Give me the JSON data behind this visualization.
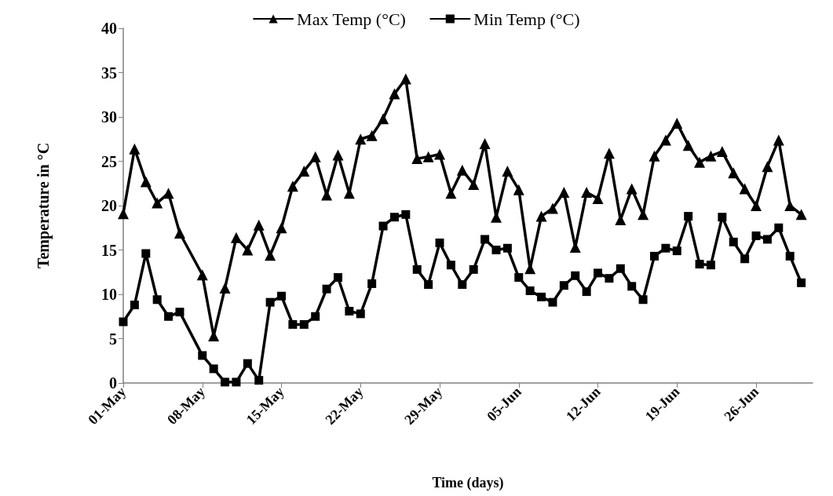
{
  "chart_data": {
    "type": "line",
    "xlabel": "Time (days)",
    "ylabel": "Temperature in °C",
    "ylim": [
      0,
      40
    ],
    "yticks": [
      0,
      5,
      10,
      15,
      20,
      25,
      30,
      35,
      40
    ],
    "xlim": [
      "--05-01",
      "--07-01"
    ],
    "xticks": [
      {
        "value": "--05-01",
        "label": "01-May"
      },
      {
        "value": "--05-08",
        "label": "08-May"
      },
      {
        "value": "--05-15",
        "label": "15-May"
      },
      {
        "value": "--05-22",
        "label": "22-May"
      },
      {
        "value": "--05-29",
        "label": "29-May"
      },
      {
        "value": "--06-05",
        "label": "05-Jun"
      },
      {
        "value": "--06-12",
        "label": "12-Jun"
      },
      {
        "value": "--06-19",
        "label": "19-Jun"
      },
      {
        "value": "--06-26",
        "label": "26-Jun"
      }
    ],
    "x": [
      "--05-01",
      "--05-02",
      "--05-03",
      "--05-04",
      "--05-05",
      "--05-06",
      "--05-08",
      "--05-09",
      "--05-10",
      "--05-11",
      "--05-12",
      "--05-13",
      "--05-14",
      "--05-15",
      "--05-16",
      "--05-17",
      "--05-18",
      "--05-19",
      "--05-20",
      "--05-21",
      "--05-22",
      "--05-23",
      "--05-24",
      "--05-25",
      "--05-26",
      "--05-27",
      "--05-28",
      "--05-29",
      "--05-30",
      "--05-31",
      "--06-01",
      "--06-02",
      "--06-03",
      "--06-04",
      "--06-05",
      "--06-06",
      "--06-07",
      "--06-08",
      "--06-09",
      "--06-10",
      "--06-11",
      "--06-12",
      "--06-13",
      "--06-14",
      "--06-15",
      "--06-16",
      "--06-17",
      "--06-18",
      "--06-19",
      "--06-20",
      "--06-21",
      "--06-22",
      "--06-23",
      "--06-24",
      "--06-25",
      "--06-26",
      "--06-27",
      "--06-28",
      "--06-29",
      "--06-30"
    ],
    "series": [
      {
        "name": "Max Temp (°C)",
        "color": "#000000",
        "marker": "triangle",
        "values": [
          19.1,
          26.4,
          22.7,
          20.3,
          21.4,
          16.9,
          12.2,
          5.3,
          10.7,
          16.4,
          15.0,
          17.8,
          14.4,
          17.5,
          22.2,
          23.9,
          25.5,
          21.2,
          25.7,
          21.4,
          27.5,
          27.9,
          29.8,
          32.6,
          34.3,
          25.3,
          25.5,
          25.8,
          21.4,
          24.0,
          22.4,
          27.0,
          18.7,
          23.9,
          21.8,
          12.9,
          18.8,
          19.7,
          21.5,
          15.3,
          21.5,
          20.8,
          25.9,
          18.4,
          21.9,
          19.0,
          25.6,
          27.4,
          29.3,
          26.8,
          24.9,
          25.6,
          26.1,
          23.7,
          21.9,
          20.0,
          24.4,
          27.4,
          20.0,
          19.0
        ]
      },
      {
        "name": "Min Temp (°C)",
        "color": "#000000",
        "marker": "square",
        "values": [
          6.9,
          8.8,
          14.6,
          9.4,
          7.5,
          8.0,
          3.1,
          1.6,
          0.1,
          0.1,
          2.2,
          0.3,
          9.1,
          9.8,
          6.6,
          6.6,
          7.5,
          10.6,
          11.9,
          8.1,
          7.8,
          11.2,
          17.7,
          18.7,
          19.0,
          12.8,
          11.1,
          15.8,
          13.3,
          11.1,
          12.8,
          16.2,
          15.0,
          15.2,
          11.9,
          10.4,
          9.7,
          9.1,
          11.0,
          12.1,
          10.3,
          12.4,
          11.8,
          12.9,
          10.9,
          9.4,
          14.3,
          15.2,
          14.9,
          18.8,
          13.4,
          13.3,
          18.7,
          15.9,
          14.0,
          16.6,
          16.2,
          17.5,
          14.3,
          11.3
        ]
      }
    ],
    "legend": "top",
    "grid": false,
    "line_style": "solid"
  }
}
